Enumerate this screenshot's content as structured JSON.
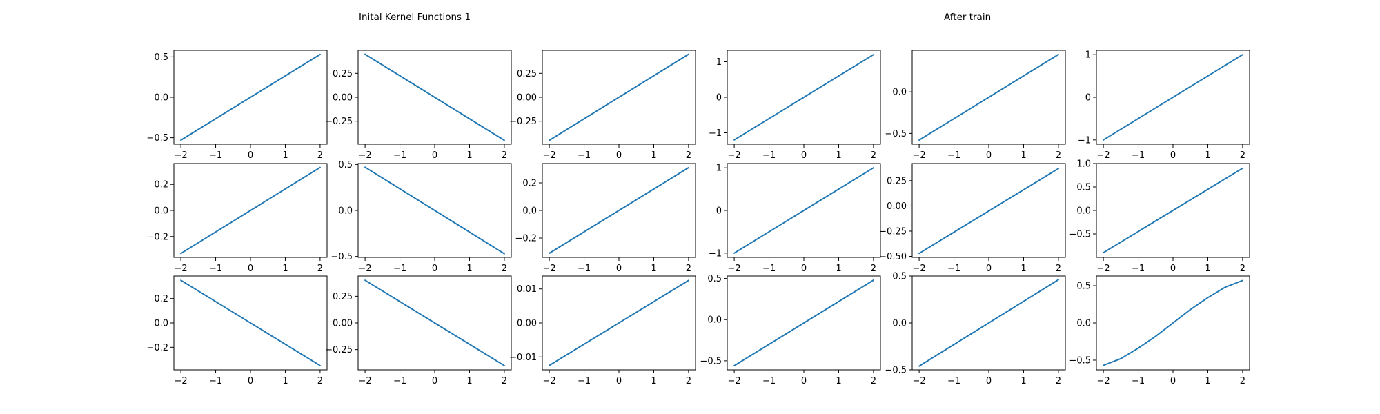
{
  "titles": {
    "left": "Inital Kernel Functions 1",
    "right": "After train"
  },
  "colors": {
    "line": "#1f77b4",
    "axes": "#000000",
    "background": "#ffffff"
  },
  "chart_data": [
    {
      "type": "line",
      "row": 1,
      "col": 1,
      "x": [
        -2,
        2
      ],
      "y": [
        -0.53,
        0.53
      ],
      "ylim": [
        -0.58,
        0.58
      ],
      "xticks": [
        -2,
        -1,
        0,
        1,
        2
      ],
      "xtick_labels": [
        "−2",
        "−1",
        "0",
        "1",
        "2"
      ],
      "yticks": [
        -0.5,
        0.0,
        0.5
      ],
      "ytick_labels": [
        "−0.5",
        "0.0",
        "0.5"
      ],
      "grid": false
    },
    {
      "type": "line",
      "row": 1,
      "col": 2,
      "x": [
        -2,
        2
      ],
      "y": [
        0.45,
        -0.45
      ],
      "ylim": [
        -0.49,
        0.49
      ],
      "xticks": [
        -2,
        -1,
        0,
        1,
        2
      ],
      "xtick_labels": [
        "−2",
        "−1",
        "0",
        "1",
        "2"
      ],
      "yticks": [
        -0.25,
        0.0,
        0.25
      ],
      "ytick_labels": [
        "−0.25",
        "0.00",
        "0.25"
      ],
      "grid": false
    },
    {
      "type": "line",
      "row": 1,
      "col": 3,
      "x": [
        -2,
        2
      ],
      "y": [
        -0.45,
        0.45
      ],
      "ylim": [
        -0.49,
        0.49
      ],
      "xticks": [
        -2,
        -1,
        0,
        1,
        2
      ],
      "xtick_labels": [
        "−2",
        "−1",
        "0",
        "1",
        "2"
      ],
      "yticks": [
        -0.25,
        0.0,
        0.25
      ],
      "ytick_labels": [
        "−0.25",
        "0.00",
        "0.25"
      ],
      "grid": false
    },
    {
      "type": "line",
      "row": 1,
      "col": 4,
      "x": [
        -2,
        2
      ],
      "y": [
        -1.2,
        1.2
      ],
      "ylim": [
        -1.32,
        1.32
      ],
      "xticks": [
        -2,
        -1,
        0,
        1,
        2
      ],
      "xtick_labels": [
        "−2",
        "−1",
        "0",
        "1",
        "2"
      ],
      "yticks": [
        -1,
        0,
        1
      ],
      "ytick_labels": [
        "−1",
        "0",
        "1"
      ],
      "grid": false
    },
    {
      "type": "line",
      "row": 1,
      "col": 5,
      "x": [
        -2,
        2
      ],
      "y": [
        -0.58,
        0.45
      ],
      "ylim": [
        -0.63,
        0.5
      ],
      "xticks": [
        -2,
        -1,
        0,
        1,
        2
      ],
      "xtick_labels": [
        "−2",
        "−1",
        "0",
        "1",
        "2"
      ],
      "yticks": [
        -0.5,
        0.0
      ],
      "ytick_labels": [
        "−0.5",
        "0.0"
      ],
      "grid": false
    },
    {
      "type": "line",
      "row": 1,
      "col": 6,
      "x": [
        -2,
        2
      ],
      "y": [
        -1.0,
        1.0
      ],
      "ylim": [
        -1.1,
        1.1
      ],
      "xticks": [
        -2,
        -1,
        0,
        1,
        2
      ],
      "xtick_labels": [
        "−2",
        "−1",
        "0",
        "1",
        "2"
      ],
      "yticks": [
        -1,
        0,
        1
      ],
      "ytick_labels": [
        "−1",
        "0",
        "1"
      ],
      "grid": false
    },
    {
      "type": "line",
      "row": 2,
      "col": 1,
      "x": [
        -2,
        2
      ],
      "y": [
        -0.33,
        0.33
      ],
      "ylim": [
        -0.36,
        0.36
      ],
      "xticks": [
        -2,
        -1,
        0,
        1,
        2
      ],
      "xtick_labels": [
        "−2",
        "−1",
        "0",
        "1",
        "2"
      ],
      "yticks": [
        -0.2,
        0.0,
        0.2
      ],
      "ytick_labels": [
        "−0.2",
        "0.0",
        "0.2"
      ],
      "grid": false
    },
    {
      "type": "line",
      "row": 2,
      "col": 2,
      "x": [
        -2,
        2
      ],
      "y": [
        0.47,
        -0.47
      ],
      "ylim": [
        -0.51,
        0.51
      ],
      "xticks": [
        -2,
        -1,
        0,
        1,
        2
      ],
      "xtick_labels": [
        "−2",
        "−1",
        "0",
        "1",
        "2"
      ],
      "yticks": [
        -0.5,
        0.0,
        0.5
      ],
      "ytick_labels": [
        "−0.5",
        "0.0",
        "0.5"
      ],
      "grid": false
    },
    {
      "type": "line",
      "row": 2,
      "col": 3,
      "x": [
        -2,
        2
      ],
      "y": [
        -0.31,
        0.31
      ],
      "ylim": [
        -0.34,
        0.34
      ],
      "xticks": [
        -2,
        -1,
        0,
        1,
        2
      ],
      "xtick_labels": [
        "−2",
        "−1",
        "0",
        "1",
        "2"
      ],
      "yticks": [
        -0.2,
        0.0,
        0.2
      ],
      "ytick_labels": [
        "−0.2",
        "0.0",
        "0.2"
      ],
      "grid": false
    },
    {
      "type": "line",
      "row": 2,
      "col": 4,
      "x": [
        -2,
        2
      ],
      "y": [
        -1.0,
        1.0
      ],
      "ylim": [
        -1.1,
        1.1
      ],
      "xticks": [
        -2,
        -1,
        0,
        1,
        2
      ],
      "xtick_labels": [
        "−2",
        "−1",
        "0",
        "1",
        "2"
      ],
      "yticks": [
        -1,
        0,
        1
      ],
      "ytick_labels": [
        "−1",
        "0",
        "1"
      ],
      "grid": false
    },
    {
      "type": "line",
      "row": 2,
      "col": 5,
      "x": [
        -2,
        2
      ],
      "y": [
        -0.47,
        0.37
      ],
      "ylim": [
        -0.51,
        0.42
      ],
      "xticks": [
        -2,
        -1,
        0,
        1,
        2
      ],
      "xtick_labels": [
        "−2",
        "−1",
        "0",
        "1",
        "2"
      ],
      "yticks": [
        -0.5,
        -0.25,
        0.0,
        0.25
      ],
      "ytick_labels": [
        "−0.50",
        "−0.25",
        "0.00",
        "0.25"
      ],
      "grid": false
    },
    {
      "type": "line",
      "row": 2,
      "col": 6,
      "x": [
        -2,
        2
      ],
      "y": [
        -0.9,
        0.9
      ],
      "ylim": [
        -1.0,
        1.0
      ],
      "xticks": [
        -2,
        -1,
        0,
        1,
        2
      ],
      "xtick_labels": [
        "−2",
        "−1",
        "0",
        "1",
        "2"
      ],
      "yticks": [
        -0.5,
        0.0,
        0.5,
        1.0
      ],
      "ytick_labels": [
        "−0.5",
        "0.0",
        "0.5",
        "1.0"
      ],
      "grid": false
    },
    {
      "type": "line",
      "row": 3,
      "col": 1,
      "x": [
        -2,
        2
      ],
      "y": [
        0.35,
        -0.35
      ],
      "ylim": [
        -0.385,
        0.385
      ],
      "xticks": [
        -2,
        -1,
        0,
        1,
        2
      ],
      "xtick_labels": [
        "−2",
        "−1",
        "0",
        "1",
        "2"
      ],
      "yticks": [
        -0.2,
        0.0,
        0.2
      ],
      "ytick_labels": [
        "−0.2",
        "0.0",
        "0.2"
      ],
      "grid": false
    },
    {
      "type": "line",
      "row": 3,
      "col": 2,
      "x": [
        -2,
        2
      ],
      "y": [
        0.4,
        -0.4
      ],
      "ylim": [
        -0.44,
        0.44
      ],
      "xticks": [
        -2,
        -1,
        0,
        1,
        2
      ],
      "xtick_labels": [
        "−2",
        "−1",
        "0",
        "1",
        "2"
      ],
      "yticks": [
        -0.25,
        0.0,
        0.25
      ],
      "ytick_labels": [
        "−0.25",
        "0.00",
        "0.25"
      ],
      "grid": false
    },
    {
      "type": "line",
      "row": 3,
      "col": 3,
      "x": [
        -2,
        2
      ],
      "y": [
        -0.0125,
        0.0125
      ],
      "ylim": [
        -0.0138,
        0.0138
      ],
      "xticks": [
        -2,
        -1,
        0,
        1,
        2
      ],
      "xtick_labels": [
        "−2",
        "−1",
        "0",
        "1",
        "2"
      ],
      "yticks": [
        -0.01,
        0.0,
        0.01
      ],
      "ytick_labels": [
        "−0.01",
        "0.00",
        "0.01"
      ],
      "grid": false
    },
    {
      "type": "line",
      "row": 3,
      "col": 4,
      "x": [
        -2,
        2
      ],
      "y": [
        -0.56,
        0.48
      ],
      "ylim": [
        -0.61,
        0.53
      ],
      "xticks": [
        -2,
        -1,
        0,
        1,
        2
      ],
      "xtick_labels": [
        "−2",
        "−1",
        "0",
        "1",
        "2"
      ],
      "yticks": [
        -0.5,
        0.0,
        0.5
      ],
      "ytick_labels": [
        "−0.5",
        "0.0",
        "0.5"
      ],
      "grid": false
    },
    {
      "type": "line",
      "row": 3,
      "col": 5,
      "x": [
        -2,
        2
      ],
      "y": [
        -0.46,
        0.46
      ],
      "ylim": [
        -0.5,
        0.5
      ],
      "xticks": [
        -2,
        -1,
        0,
        1,
        2
      ],
      "xtick_labels": [
        "−2",
        "−1",
        "0",
        "1",
        "2"
      ],
      "yticks": [
        -0.5,
        0.0,
        0.5
      ],
      "ytick_labels": [
        "−0.5",
        "0.0",
        "0.5"
      ],
      "grid": false
    },
    {
      "type": "line",
      "row": 3,
      "col": 6,
      "x": [
        -2,
        -1.5,
        -1,
        -0.5,
        0,
        0.5,
        1,
        1.5,
        2
      ],
      "y": [
        -0.57,
        -0.48,
        -0.34,
        -0.18,
        0.0,
        0.18,
        0.34,
        0.48,
        0.57
      ],
      "ylim": [
        -0.63,
        0.63
      ],
      "xticks": [
        -2,
        -1,
        0,
        1,
        2
      ],
      "xtick_labels": [
        "−2",
        "−1",
        "0",
        "1",
        "2"
      ],
      "yticks": [
        -0.5,
        0.0,
        0.5
      ],
      "ytick_labels": [
        "−0.5",
        "0.0",
        "0.5"
      ],
      "grid": false
    }
  ]
}
